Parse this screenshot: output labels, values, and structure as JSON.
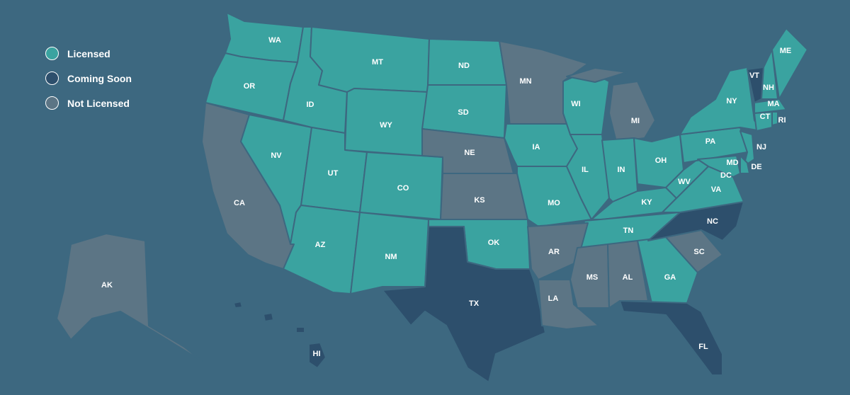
{
  "colors": {
    "background": "#3d6880",
    "licensed": "#3aa3a0",
    "coming_soon": "#2d4f6c",
    "not_licensed": "#5c7585"
  },
  "legend": [
    {
      "key": "licensed",
      "label": "Licensed"
    },
    {
      "key": "coming_soon",
      "label": "Coming Soon"
    },
    {
      "key": "not_licensed",
      "label": "Not Licensed"
    }
  ],
  "states": [
    {
      "code": "WA",
      "status": "licensed"
    },
    {
      "code": "OR",
      "status": "licensed"
    },
    {
      "code": "CA",
      "status": "not_licensed"
    },
    {
      "code": "NV",
      "status": "licensed"
    },
    {
      "code": "ID",
      "status": "licensed"
    },
    {
      "code": "MT",
      "status": "licensed"
    },
    {
      "code": "WY",
      "status": "licensed"
    },
    {
      "code": "UT",
      "status": "licensed"
    },
    {
      "code": "AZ",
      "status": "licensed"
    },
    {
      "code": "CO",
      "status": "licensed"
    },
    {
      "code": "NM",
      "status": "licensed"
    },
    {
      "code": "ND",
      "status": "licensed"
    },
    {
      "code": "SD",
      "status": "licensed"
    },
    {
      "code": "NE",
      "status": "not_licensed"
    },
    {
      "code": "KS",
      "status": "not_licensed"
    },
    {
      "code": "OK",
      "status": "licensed"
    },
    {
      "code": "TX",
      "status": "coming_soon"
    },
    {
      "code": "MN",
      "status": "not_licensed"
    },
    {
      "code": "IA",
      "status": "licensed"
    },
    {
      "code": "MO",
      "status": "licensed"
    },
    {
      "code": "WI",
      "status": "licensed"
    },
    {
      "code": "IL",
      "status": "licensed"
    },
    {
      "code": "MI",
      "status": "not_licensed"
    },
    {
      "code": "IN",
      "status": "licensed"
    },
    {
      "code": "OH",
      "status": "licensed"
    },
    {
      "code": "KY",
      "status": "licensed"
    },
    {
      "code": "TN",
      "status": "licensed"
    },
    {
      "code": "AR",
      "status": "not_licensed"
    },
    {
      "code": "LA",
      "status": "not_licensed"
    },
    {
      "code": "MS",
      "status": "not_licensed"
    },
    {
      "code": "AL",
      "status": "not_licensed"
    },
    {
      "code": "GA",
      "status": "licensed"
    },
    {
      "code": "FL",
      "status": "coming_soon"
    },
    {
      "code": "SC",
      "status": "not_licensed"
    },
    {
      "code": "NC",
      "status": "coming_soon"
    },
    {
      "code": "VA",
      "status": "licensed"
    },
    {
      "code": "WV",
      "status": "licensed"
    },
    {
      "code": "PA",
      "status": "licensed"
    },
    {
      "code": "NY",
      "status": "licensed"
    },
    {
      "code": "VT",
      "status": "coming_soon"
    },
    {
      "code": "NH",
      "status": "licensed"
    },
    {
      "code": "ME",
      "status": "licensed"
    },
    {
      "code": "MA",
      "status": "licensed"
    },
    {
      "code": "CT",
      "status": "licensed"
    },
    {
      "code": "RI",
      "status": "licensed"
    },
    {
      "code": "NJ",
      "status": "licensed"
    },
    {
      "code": "DE",
      "status": "licensed"
    },
    {
      "code": "MD",
      "status": "licensed"
    },
    {
      "code": "DC",
      "status": "licensed"
    },
    {
      "code": "AK",
      "status": "not_licensed"
    },
    {
      "code": "HI",
      "status": "coming_soon"
    }
  ]
}
